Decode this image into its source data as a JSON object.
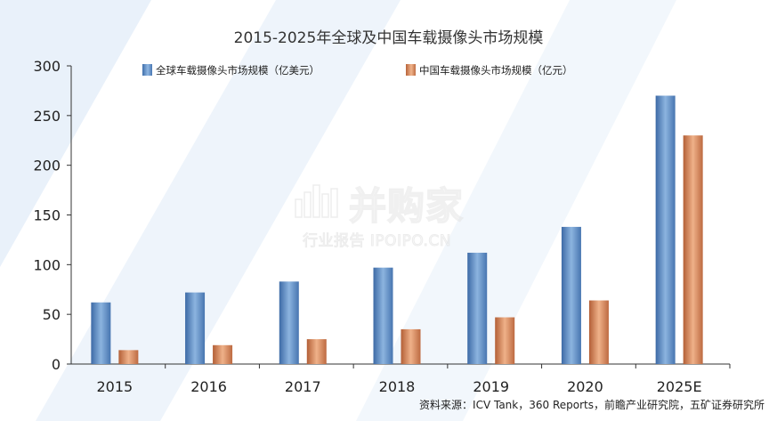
{
  "chart_data": {
    "type": "bar",
    "title": "2015-2025年全球及中国车载摄像头市场规模",
    "categories": [
      "2015",
      "2016",
      "2017",
      "2018",
      "2019",
      "2020",
      "2025E"
    ],
    "series": [
      {
        "name": "全球车载摄像头市场规模（亿美元）",
        "values": [
          62,
          72,
          83,
          97,
          112,
          138,
          270
        ],
        "color": "#5b8ec9"
      },
      {
        "name": "中国车载摄像头市场规模（亿元）",
        "values": [
          14,
          19,
          25,
          35,
          47,
          64,
          230
        ],
        "color": "#d88a5c"
      }
    ],
    "ylim": [
      0,
      300
    ],
    "yticks": [
      0,
      50,
      100,
      150,
      200,
      250,
      300
    ],
    "grid": false,
    "legend_position": "top"
  },
  "watermark": {
    "name": "并购家",
    "subtitle": "行业报告 IPOIPO.CN"
  },
  "source": "资料来源：ICV Tank，360 Reports，前瞻产业研究院，五矿证券研究所",
  "colors": {
    "stripe": "#e6eef8",
    "axis": "#333333"
  }
}
